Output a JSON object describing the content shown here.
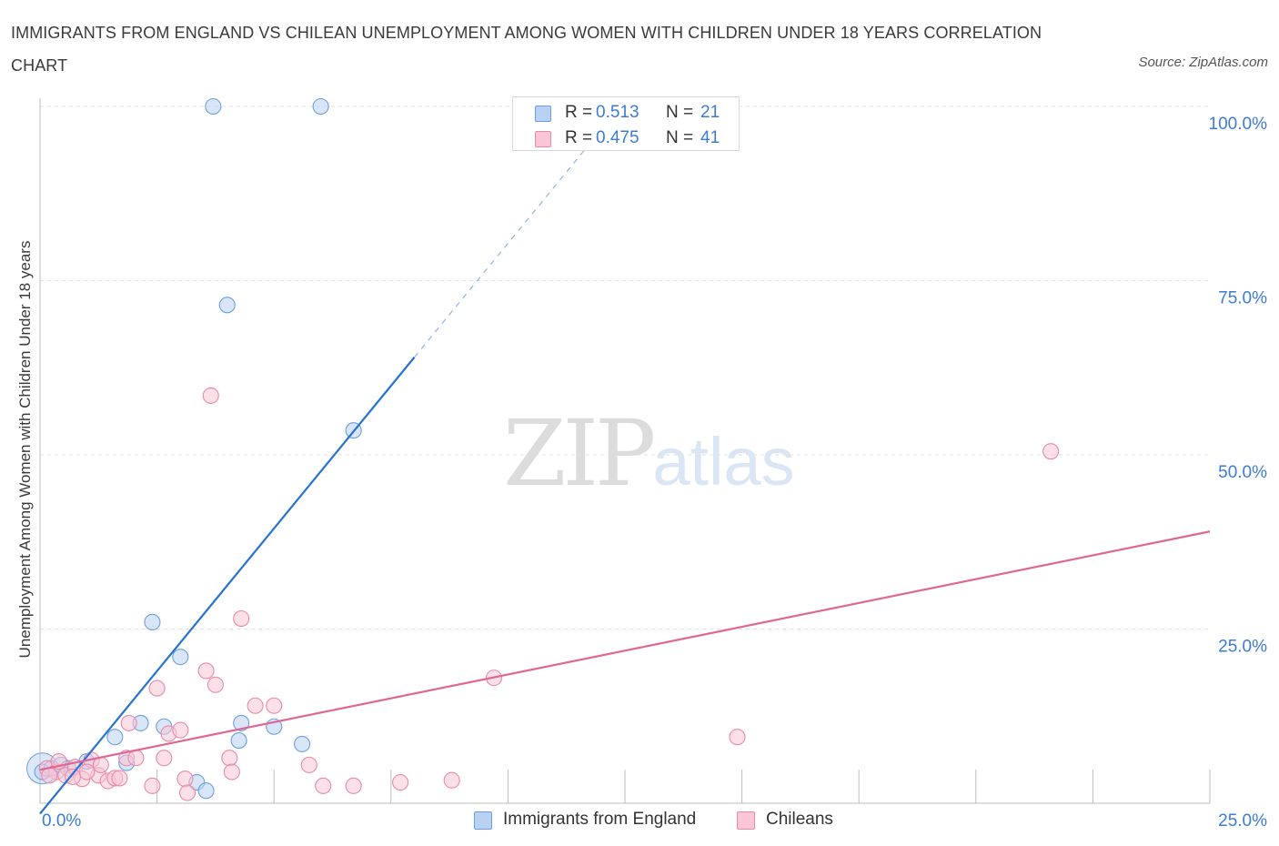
{
  "chart_data": {
    "type": "scatter",
    "title": "IMMIGRANTS FROM ENGLAND VS CHILEAN UNEMPLOYMENT AMONG WOMEN WITH CHILDREN UNDER 18 YEARS CORRELATION CHART",
    "source": "Source: ZipAtlas.com",
    "xlabel": "",
    "ylabel": "Unemployment Among Women with Children Under 18 years",
    "xlim": [
      0,
      25
    ],
    "ylim": [
      0,
      100
    ],
    "x_tick_labels": [
      "0.0%",
      "25.0%"
    ],
    "y_tick_labels": [
      "25.0%",
      "50.0%",
      "75.0%",
      "100.0%"
    ],
    "y_tick_values": [
      25,
      50,
      75,
      100
    ],
    "watermark": {
      "zip": "ZIP",
      "atlas": "atlas"
    },
    "series": [
      {
        "name": "Immigrants from England",
        "color": "#6b9fe0",
        "fill": "#b9d1f2",
        "line_color": "#2872d0",
        "R": "0.513",
        "N": "21",
        "trend": {
          "x0": 0.0,
          "y0": -1.5,
          "x1": 8.0,
          "y1": 64.0,
          "dash_x1": 12.5,
          "dash_y1": 100.8
        },
        "points": [
          {
            "x": 0.05,
            "y": 4.5
          },
          {
            "x": 0.25,
            "y": 5.0
          },
          {
            "x": 0.45,
            "y": 5.5
          },
          {
            "x": 0.6,
            "y": 5.0
          },
          {
            "x": 1.0,
            "y": 6.0
          },
          {
            "x": 1.6,
            "y": 9.5
          },
          {
            "x": 1.85,
            "y": 5.8
          },
          {
            "x": 2.15,
            "y": 11.5
          },
          {
            "x": 2.4,
            "y": 26.0
          },
          {
            "x": 2.65,
            "y": 11.0
          },
          {
            "x": 3.0,
            "y": 21.0
          },
          {
            "x": 3.35,
            "y": 3.0
          },
          {
            "x": 3.55,
            "y": 1.8
          },
          {
            "x": 3.7,
            "y": 100.0
          },
          {
            "x": 4.0,
            "y": 71.5
          },
          {
            "x": 4.3,
            "y": 11.5
          },
          {
            "x": 4.25,
            "y": 9.0
          },
          {
            "x": 5.0,
            "y": 11.0
          },
          {
            "x": 5.6,
            "y": 8.5
          },
          {
            "x": 6.0,
            "y": 100.0
          },
          {
            "x": 6.7,
            "y": 53.5
          }
        ]
      },
      {
        "name": "Chileans",
        "color": "#e88aaa",
        "fill": "#f8c6d6",
        "line_color": "#e06793",
        "R": "0.475",
        "N": "41",
        "trend": {
          "x0": 0.0,
          "y0": 4.8,
          "x1": 25.0,
          "y1": 39.0
        },
        "points": [
          {
            "x": 0.15,
            "y": 5.0
          },
          {
            "x": 0.35,
            "y": 4.5
          },
          {
            "x": 0.55,
            "y": 4.0
          },
          {
            "x": 0.75,
            "y": 5.2
          },
          {
            "x": 0.9,
            "y": 3.5
          },
          {
            "x": 1.1,
            "y": 6.2
          },
          {
            "x": 1.25,
            "y": 4.0
          },
          {
            "x": 1.3,
            "y": 5.5
          },
          {
            "x": 1.45,
            "y": 3.2
          },
          {
            "x": 1.6,
            "y": 3.6
          },
          {
            "x": 1.7,
            "y": 3.6
          },
          {
            "x": 1.85,
            "y": 6.5
          },
          {
            "x": 1.9,
            "y": 11.5
          },
          {
            "x": 2.05,
            "y": 6.5
          },
          {
            "x": 2.4,
            "y": 2.5
          },
          {
            "x": 2.5,
            "y": 16.5
          },
          {
            "x": 2.65,
            "y": 6.5
          },
          {
            "x": 2.75,
            "y": 10.0
          },
          {
            "x": 3.0,
            "y": 10.5
          },
          {
            "x": 3.1,
            "y": 3.5
          },
          {
            "x": 3.15,
            "y": 1.5
          },
          {
            "x": 3.65,
            "y": 58.5
          },
          {
            "x": 3.55,
            "y": 19.0
          },
          {
            "x": 3.75,
            "y": 17.0
          },
          {
            "x": 4.05,
            "y": 6.5
          },
          {
            "x": 4.1,
            "y": 4.5
          },
          {
            "x": 4.3,
            "y": 26.5
          },
          {
            "x": 4.6,
            "y": 14.0
          },
          {
            "x": 5.0,
            "y": 14.0
          },
          {
            "x": 5.75,
            "y": 5.5
          },
          {
            "x": 6.05,
            "y": 2.5
          },
          {
            "x": 6.7,
            "y": 2.5
          },
          {
            "x": 7.7,
            "y": 3.0
          },
          {
            "x": 8.8,
            "y": 3.3
          },
          {
            "x": 9.7,
            "y": 18.0
          },
          {
            "x": 14.9,
            "y": 9.5
          },
          {
            "x": 21.6,
            "y": 50.5
          },
          {
            "x": 0.4,
            "y": 6.0
          },
          {
            "x": 0.2,
            "y": 4.0
          },
          {
            "x": 1.0,
            "y": 4.5
          },
          {
            "x": 0.7,
            "y": 3.8
          }
        ]
      }
    ]
  },
  "legend": {
    "r_label": "R =",
    "n_label": "N ="
  }
}
